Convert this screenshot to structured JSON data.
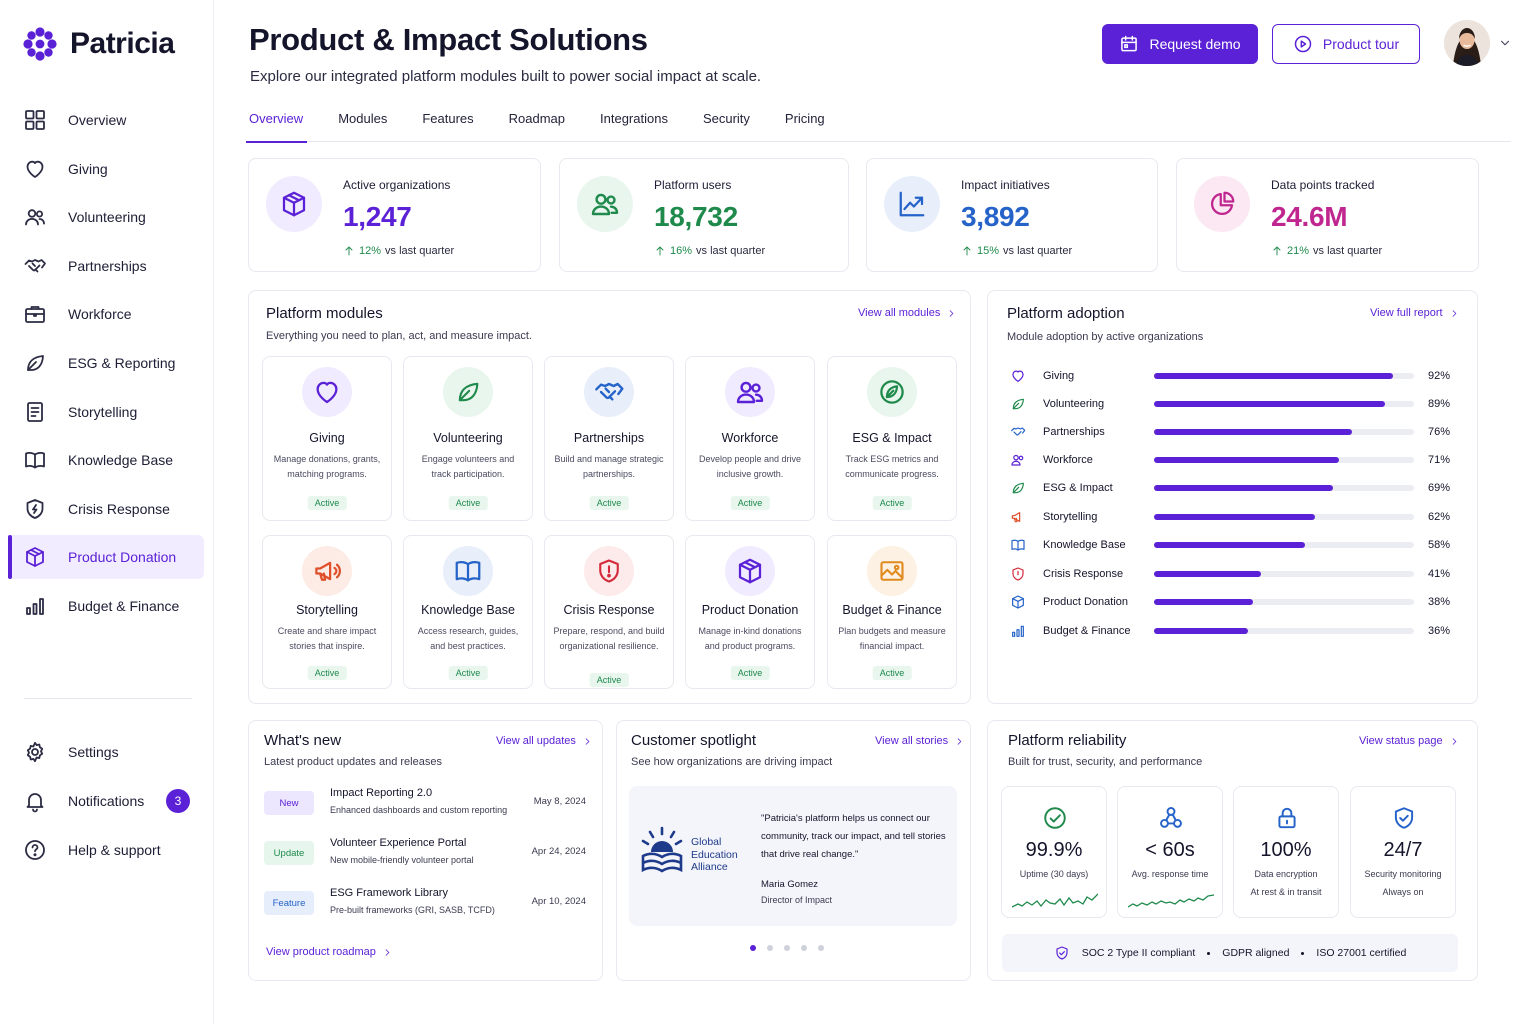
{
  "app": {
    "name": "Patricia"
  },
  "sidebar": {
    "items": [
      {
        "label": "Overview",
        "icon": "grid-icon"
      },
      {
        "label": "Giving",
        "icon": "heart-icon"
      },
      {
        "label": "Volunteering",
        "icon": "users-icon"
      },
      {
        "label": "Partnerships",
        "icon": "handshake-icon"
      },
      {
        "label": "Workforce",
        "icon": "briefcase-icon"
      },
      {
        "label": "ESG & Reporting",
        "icon": "leaf-icon"
      },
      {
        "label": "Storytelling",
        "icon": "document-icon"
      },
      {
        "label": "Knowledge Base",
        "icon": "book-icon"
      },
      {
        "label": "Crisis Response",
        "icon": "shield-icon"
      },
      {
        "label": "Product Donation",
        "icon": "box-icon",
        "active": true
      },
      {
        "label": "Budget & Finance",
        "icon": "bar-chart-icon"
      }
    ],
    "bottom": [
      {
        "label": "Settings",
        "icon": "gear-icon"
      },
      {
        "label": "Notifications",
        "icon": "bell-icon",
        "badge": "3"
      },
      {
        "label": "Help & support",
        "icon": "help-icon"
      }
    ]
  },
  "header": {
    "title": "Product & Impact Solutions",
    "subtitle": "Explore our integrated platform modules built to power social impact at scale.",
    "request_demo": "Request demo",
    "product_tour": "Product tour"
  },
  "tabs": [
    "Overview",
    "Modules",
    "Features",
    "Roadmap",
    "Integrations",
    "Security",
    "Pricing"
  ],
  "stats": [
    {
      "label": "Active organizations",
      "value": "1,247",
      "delta": "12%",
      "delta_text": "vs last quarter",
      "color": "#5b21d6"
    },
    {
      "label": "Platform users",
      "value": "18,732",
      "delta": "16%",
      "delta_text": "vs last quarter",
      "color": "#1f8a4c"
    },
    {
      "label": "Impact initiatives",
      "value": "3,892",
      "delta": "15%",
      "delta_text": "vs last quarter",
      "color": "#2563c9"
    },
    {
      "label": "Data points tracked",
      "value": "24.6M",
      "delta": "21%",
      "delta_text": "vs last quarter",
      "color": "#c0268f"
    }
  ],
  "modules": {
    "title": "Platform modules",
    "subtitle": "Everything you need to plan, act, and measure impact.",
    "link": "View all modules",
    "items": [
      {
        "name": "Giving",
        "desc": "Manage donations, grants, matching programs.",
        "status": "Active",
        "icon": "heart-icon"
      },
      {
        "name": "Volunteering",
        "desc": "Engage volunteers and track participation.",
        "status": "Active",
        "icon": "leaf-icon"
      },
      {
        "name": "Partnerships",
        "desc": "Build and manage strategic partnerships.",
        "status": "Active",
        "icon": "handshake-icon"
      },
      {
        "name": "Workforce",
        "desc": "Develop people and drive inclusive growth.",
        "status": "Active",
        "icon": "users-icon"
      },
      {
        "name": "ESG & Impact",
        "desc": "Track ESG metrics and communicate progress.",
        "status": "Active",
        "icon": "leaf-icon"
      },
      {
        "name": "Storytelling",
        "desc": "Create and share impact stories that inspire.",
        "status": "Active",
        "icon": "megaphone-icon"
      },
      {
        "name": "Knowledge Base",
        "desc": "Access research, guides, and best practices.",
        "status": "Active",
        "icon": "book-icon"
      },
      {
        "name": "Crisis Response",
        "desc": "Prepare, respond, and build organizational resilience.",
        "status": "Active",
        "icon": "shield-icon"
      },
      {
        "name": "Product Donation",
        "desc": "Manage in-kind donations and product programs.",
        "status": "Active",
        "icon": "box-icon"
      },
      {
        "name": "Budget & Finance",
        "desc": "Plan budgets and measure financial impact.",
        "status": "Active",
        "icon": "image-icon"
      }
    ]
  },
  "adoption": {
    "title": "Platform adoption",
    "subtitle": "Module adoption by active organizations",
    "link": "View full report",
    "items": [
      {
        "name": "Giving",
        "value": 92,
        "label": "92%",
        "icon": "heart-icon",
        "color": "#5b21d6"
      },
      {
        "name": "Volunteering",
        "value": 89,
        "label": "89%",
        "icon": "leaf-icon",
        "color": "#1f8a4c"
      },
      {
        "name": "Partnerships",
        "value": 76,
        "label": "76%",
        "icon": "handshake-icon",
        "color": "#2563c9"
      },
      {
        "name": "Workforce",
        "value": 71,
        "label": "71%",
        "icon": "users-icon",
        "color": "#5b21d6"
      },
      {
        "name": "ESG & Impact",
        "value": 69,
        "label": "69%",
        "icon": "leaf-icon",
        "color": "#1f8a4c"
      },
      {
        "name": "Storytelling",
        "value": 62,
        "label": "62%",
        "icon": "megaphone-icon",
        "color": "#e0502b"
      },
      {
        "name": "Knowledge Base",
        "value": 58,
        "label": "58%",
        "icon": "book-icon",
        "color": "#2563c9"
      },
      {
        "name": "Crisis Response",
        "value": 41,
        "label": "41%",
        "icon": "shield-icon",
        "color": "#d42a3a"
      },
      {
        "name": "Product Donation",
        "value": 38,
        "label": "38%",
        "icon": "box-icon",
        "color": "#2563c9"
      },
      {
        "name": "Budget & Finance",
        "value": 36,
        "label": "36%",
        "icon": "bar-chart-icon",
        "color": "#2563c9"
      }
    ]
  },
  "whats_new": {
    "title": "What's new",
    "subtitle": "Latest product updates and releases",
    "link": "View all updates",
    "footer_link": "View product roadmap",
    "items": [
      {
        "tag": "New",
        "title": "Impact Reporting 2.0",
        "desc": "Enhanced dashboards and custom reporting",
        "date": "May 8, 2024",
        "tag_bg": "#ece6ff",
        "tag_fg": "#5b21d6"
      },
      {
        "tag": "Update",
        "title": "Volunteer Experience Portal",
        "desc": "New mobile-friendly volunteer portal",
        "date": "Apr 24, 2024",
        "tag_bg": "#e6f6ec",
        "tag_fg": "#1f8a4c"
      },
      {
        "tag": "Feature",
        "title": "ESG Framework Library",
        "desc": "Pre-built frameworks (GRI, SASB, TCFD)",
        "date": "Apr 10, 2024",
        "tag_bg": "#e6eefb",
        "tag_fg": "#2563c9"
      }
    ]
  },
  "spotlight": {
    "title": "Customer spotlight",
    "subtitle": "See how organizations are driving impact",
    "link": "View all stories",
    "org_line1": "Global",
    "org_line2": "Education",
    "org_line3": "Alliance",
    "quote": "\"Patricia's platform helps us connect our community, track our impact, and tell stories that drive real change.\"",
    "author": "Maria Gomez",
    "role": "Director of Impact"
  },
  "reliability": {
    "title": "Platform reliability",
    "subtitle": "Built for trust, security, and performance",
    "link": "View status page",
    "cards": [
      {
        "value": "99.9%",
        "label": "Uptime (30 days)",
        "label2": "",
        "icon": "check-circle-icon"
      },
      {
        "value": "< 60s",
        "label": "Avg. response time",
        "label2": "",
        "icon": "nodes-icon"
      },
      {
        "value": "100%",
        "label": "Data encryption",
        "label2": "At rest & in transit",
        "icon": "lock-icon"
      },
      {
        "value": "24/7",
        "label": "Security monitoring",
        "label2": "Always on",
        "icon": "shield-check-icon"
      }
    ],
    "compliance": [
      "SOC 2 Type II compliant",
      "GDPR aligned",
      "ISO 27001 certified"
    ]
  }
}
